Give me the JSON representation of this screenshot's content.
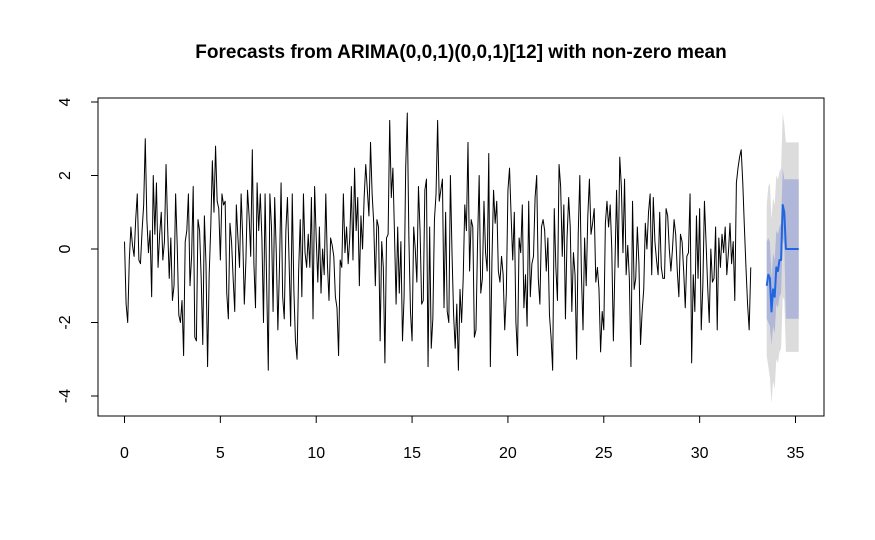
{
  "chart_data": {
    "type": "line",
    "title": "Forecasts from ARIMA(0,0,1)(0,0,1)[12] with non-zero mean",
    "xlabel": "",
    "ylabel": "",
    "xlim": [
      0,
      35.5
    ],
    "ylim": [
      -4.5,
      4
    ],
    "x_ticks": [
      0,
      5,
      10,
      15,
      20,
      25,
      30,
      35
    ],
    "y_ticks": [
      -4,
      -2,
      0,
      2,
      4
    ],
    "grid": false,
    "legend": "none",
    "colors": {
      "observed": "#000000",
      "forecast": "#2166e0",
      "band80": "#b0b7d8",
      "band95": "#dcdcdc"
    },
    "observed": {
      "start": 0,
      "step": 0.0833333,
      "values": [
        0.2,
        -1.5,
        -2.0,
        -0.3,
        0.6,
        0.1,
        -0.2,
        0.8,
        1.5,
        -0.3,
        -0.4,
        0.5,
        1.2,
        3.0,
        0.8,
        -0.1,
        0.5,
        -1.3,
        2.0,
        0.4,
        1.8,
        -0.5,
        0.4,
        1.0,
        -0.3,
        0.2,
        2.3,
        0.6,
        -0.8,
        0.3,
        -1.4,
        -1.0,
        1.5,
        0.1,
        -1.8,
        -2.0,
        -1.4,
        -2.9,
        0.2,
        0.5,
        1.5,
        -1.0,
        -0.2,
        1.7,
        -2.4,
        -2.5,
        0.8,
        0.5,
        -0.8,
        -2.6,
        0.9,
        -0.4,
        -3.2,
        -0.7,
        0.6,
        2.4,
        1.0,
        2.8,
        1.3,
        1.1,
        -0.3,
        1.5,
        1.2,
        1.3,
        -1.2,
        -1.9,
        0.7,
        0.2,
        -0.8,
        -1.7,
        1.2,
        0.3,
        -0.5,
        1.5,
        0.3,
        -1.5,
        -0.3,
        1.6,
        0.9,
        -0.2,
        2.7,
        -0.4,
        -1.6,
        1.8,
        0.5,
        1.5,
        0.3,
        -2.0,
        1.5,
        -1.0,
        -3.3,
        1.5,
        0.6,
        -1.7,
        1.4,
        -0.1,
        -2.2,
        -0.5,
        1.8,
        -1.3,
        -1.9,
        0.5,
        1.4,
        -0.3,
        -2.1,
        1.5,
        -1.1,
        -2.5,
        -3.0,
        -0.6,
        0.8,
        -1.3,
        1.5,
        -0.1,
        -0.5,
        0.4,
        -0.5,
        1.4,
        -1.9,
        1.7,
        0.3,
        -0.9,
        0.6,
        -1.2,
        0.0,
        -0.7,
        1.5,
        -0.4,
        -1.4,
        0.3,
        0.1,
        -0.2,
        -1.3,
        -1.6,
        -2.9,
        -0.3,
        -0.5,
        1.5,
        -0.1,
        0.6,
        -0.4,
        0.3,
        1.7,
        -0.3,
        2.2,
        0.5,
        1.4,
        -1.0,
        0.9,
        0.0,
        1.4,
        2.3,
        1.6,
        0.9,
        2.9,
        1.5,
        0.7,
        -1.0,
        0.8,
        0.6,
        -2.5,
        0.2,
        -0.5,
        -3.1,
        0.3,
        0.4,
        3.5,
        1.4,
        2.2,
        0.4,
        -1.5,
        0.6,
        -1.2,
        0.2,
        -2.5,
        -1.3,
        2.2,
        3.7,
        0.3,
        -1.7,
        -2.5,
        0.6,
        0.0,
        -0.9,
        1.7,
        0.5,
        -1.5,
        -1.4,
        1.6,
        1.9,
        -3.2,
        0.6,
        -2.7,
        -1.9,
        0.8,
        1.5,
        3.5,
        1.3,
        1.6,
        1.9,
        -1.6,
        1.0,
        -1.7,
        -2.0,
        2.0,
        -0.1,
        -1.8,
        -2.7,
        -1.5,
        -3.3,
        -1.1,
        -2.0,
        -0.8,
        1.2,
        0.5,
        2.9,
        -0.6,
        0.8,
        0.6,
        -2.4,
        -2.2,
        0.2,
        2.0,
        -1.2,
        -0.8,
        1.3,
        -0.1,
        -0.6,
        2.6,
        -3.2,
        -0.3,
        1.6,
        0.7,
        1.3,
        -0.6,
        -0.9,
        -0.2,
        -0.7,
        -2.2,
        -1.2,
        1.6,
        2.2,
        0.9,
        -0.3,
        1.0,
        -2.0,
        -2.9,
        0.3,
        -0.1,
        1.2,
        -1.6,
        -0.7,
        -2.1,
        1.3,
        -1.3,
        -0.4,
        -0.2,
        1.4,
        2.0,
        -0.8,
        -1.5,
        0.6,
        0.8,
        0.5,
        -0.6,
        0.3,
        -1.8,
        -2.4,
        -3.3,
        1.1,
        -0.5,
        -1.4,
        2.3,
        1.7,
        -0.2,
        1.2,
        -1.9,
        0.3,
        1.4,
        0.6,
        -1.7,
        -0.1,
        -0.7,
        -3.0,
        0.4,
        2.0,
        -0.7,
        -2.2,
        0.3,
        -1.0,
        0.9,
        1.9,
        0.4,
        0.7,
        1.1,
        -0.9,
        -0.5,
        -1.1,
        -2.8,
        -1.7,
        -2.2,
        0.7,
        1.3,
        0.6,
        1.2,
        0.0,
        -2.5,
        -0.4,
        1.6,
        -0.5,
        2.5,
        1.7,
        -0.1,
        1.9,
        -0.7,
        0.1,
        -0.8,
        -3.2,
        1.3,
        -1.1,
        -0.8,
        0.6,
        -0.4,
        -2.6,
        -1.7,
        -1.1,
        0.7,
        0.0,
        1.0,
        1.5,
        -0.7,
        1.4,
        0.2,
        -0.3,
        -0.7,
        1.0,
        -0.5,
        -0.8,
        -0.8,
        1.1,
        0.9,
        0.0,
        -0.6,
        0.0,
        0.8,
        0.4,
        -0.6,
        -1.3,
        0.4,
        0.2,
        -0.6,
        -1.6,
        -0.2,
        -0.1,
        1.5,
        -3.1,
        -0.7,
        -1.7,
        0.9,
        -0.8,
        1.1,
        -2.2,
        -1.0,
        1.3,
        0.2,
        -1.0,
        -2.0,
        0.0,
        -0.9,
        -0.8,
        0.6,
        -2.2,
        0.3,
        -0.5,
        0.4,
        -0.1,
        0.6,
        -0.7,
        -0.1,
        0.7,
        -0.4,
        0.2,
        -1.4,
        1.8,
        2.2,
        2.5,
        2.7,
        1.8,
        0.6,
        -0.5,
        -1.5,
        -2.2,
        -0.5
      ]
    },
    "forecast": {
      "x": [
        33.5,
        33.583,
        33.667,
        33.75,
        33.833,
        33.917,
        34.0,
        34.083,
        34.167,
        34.25,
        34.333,
        34.417,
        34.5,
        34.583,
        34.667,
        34.75,
        34.833,
        34.917,
        35.0,
        35.083,
        35.167
      ],
      "mean": [
        -1.0,
        -0.7,
        -0.8,
        -1.7,
        -1.1,
        -1.3,
        -0.5,
        -0.6,
        -0.3,
        -0.3,
        1.2,
        1.0,
        0.0,
        0.0,
        0.0,
        0.0,
        0.0,
        0.0,
        0.0,
        0.0,
        0.0
      ],
      "lo80": [
        -1.9,
        -2.0,
        -2.1,
        -2.6,
        -2.1,
        -2.3,
        -1.5,
        -1.6,
        -1.3,
        -1.2,
        0.3,
        0.1,
        -1.9,
        -1.9,
        -1.9,
        -1.9,
        -1.9,
        -1.9,
        -1.9,
        -1.9,
        -1.9
      ],
      "hi80": [
        0.2,
        0.3,
        0.2,
        -0.8,
        -0.1,
        -0.3,
        0.5,
        0.4,
        0.6,
        0.7,
        2.2,
        1.9,
        1.9,
        1.9,
        1.9,
        1.9,
        1.9,
        1.9,
        1.9,
        1.9,
        1.9
      ],
      "lo95": [
        -2.9,
        -3.2,
        -3.5,
        -4.2,
        -3.6,
        -3.8,
        -3.0,
        -3.1,
        -2.8,
        -2.7,
        -1.3,
        -1.4,
        -2.8,
        -2.8,
        -2.8,
        -2.8,
        -2.8,
        -2.8,
        -2.8,
        -2.8,
        -2.8
      ],
      "hi95": [
        1.2,
        1.7,
        1.8,
        0.8,
        1.4,
        1.2,
        2.0,
        1.9,
        2.1,
        2.2,
        3.7,
        3.4,
        2.9,
        2.9,
        2.9,
        2.9,
        2.9,
        2.9,
        2.9,
        2.9,
        2.9
      ]
    }
  }
}
